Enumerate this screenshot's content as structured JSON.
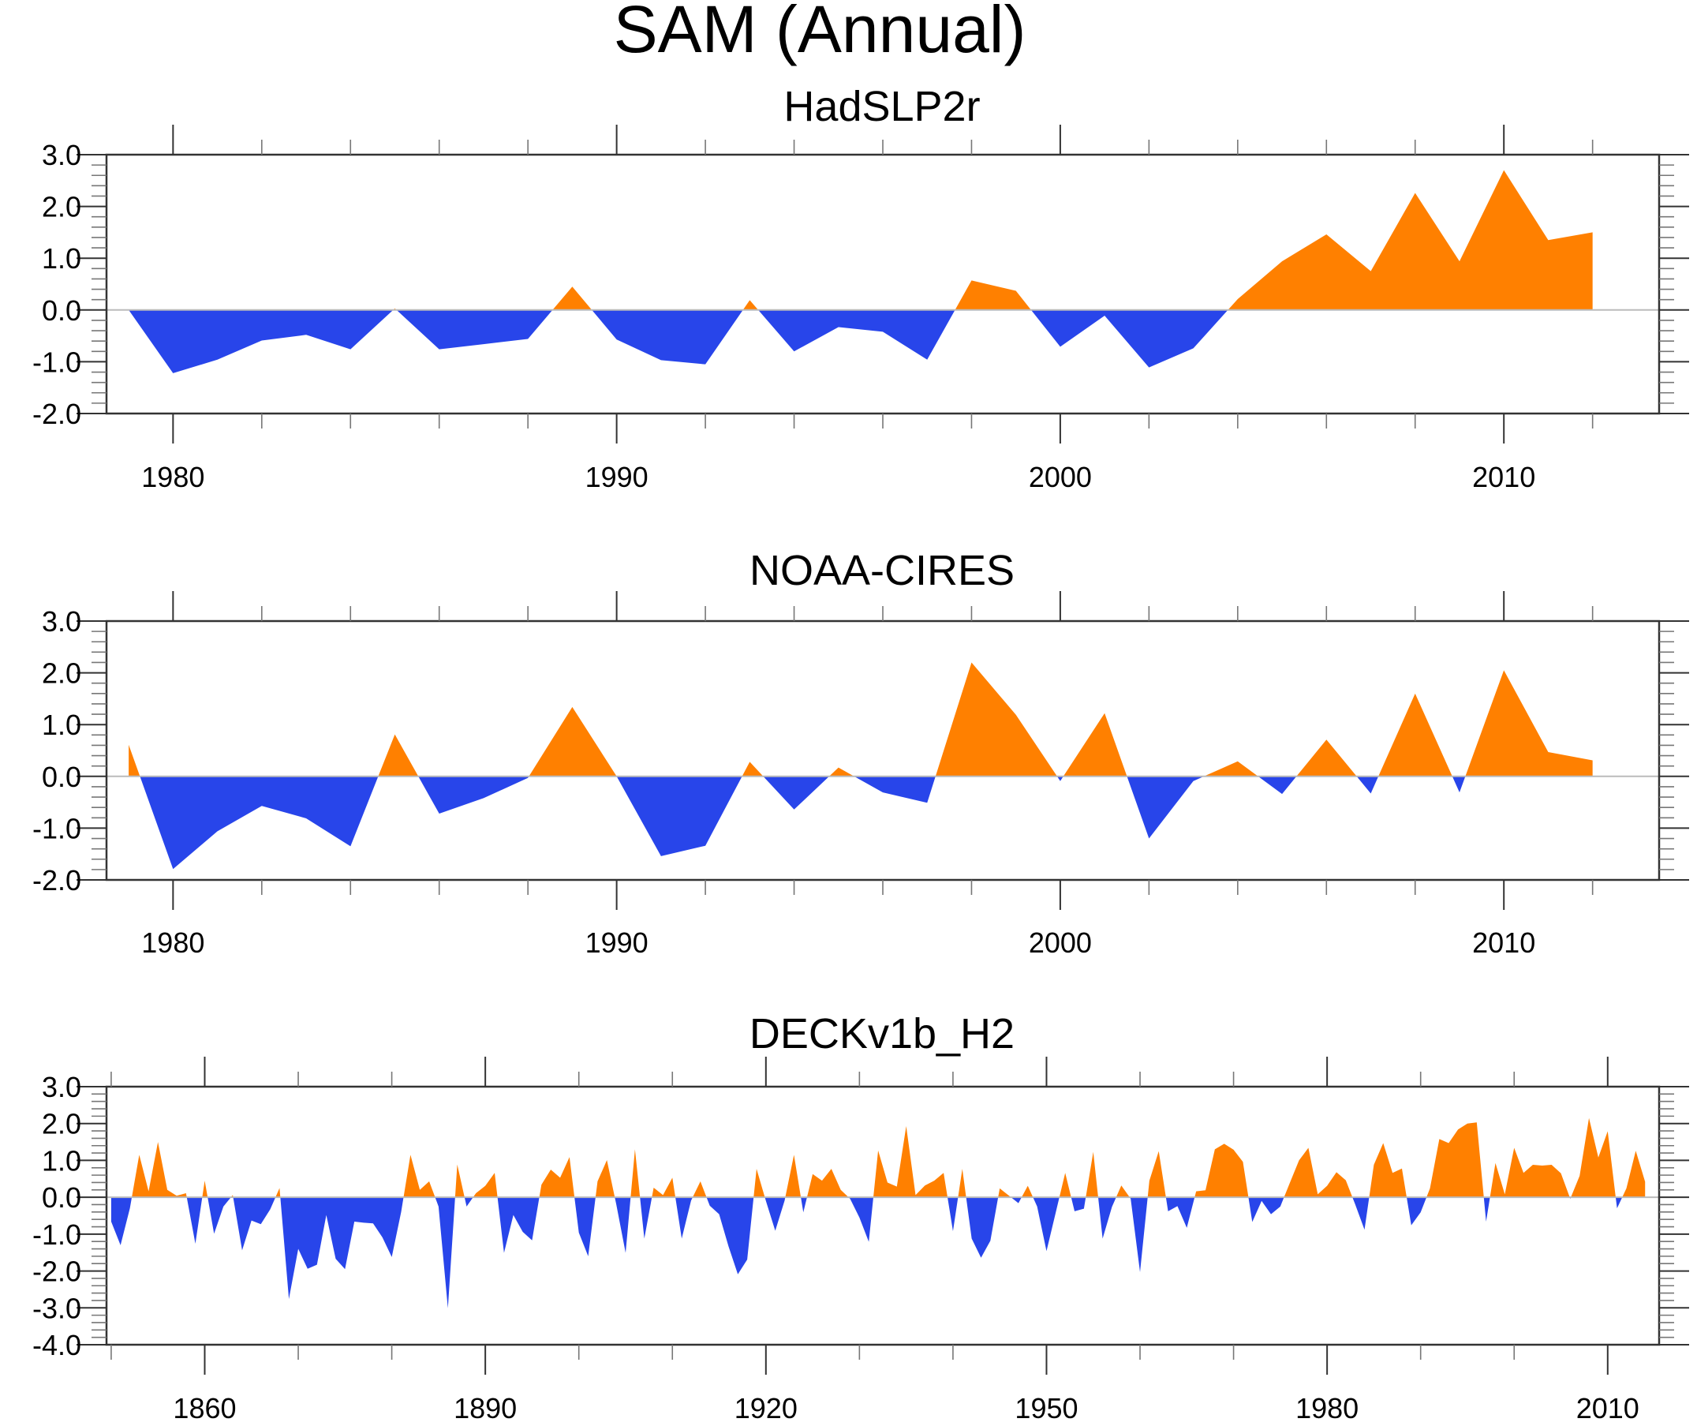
{
  "colors": {
    "positive": "#FF8000",
    "negative": "#2845EA",
    "zero_line": "#BBBBBB",
    "frame": "#333333"
  },
  "chart_data": {
    "type": "area",
    "title": "SAM (Annual)",
    "panels": [
      {
        "title": "HadSLP2r",
        "xlim": [
          1978.5,
          2013.5
        ],
        "ylim": [
          -2.0,
          3.0
        ],
        "x_major_ticks": [
          1980,
          1990,
          2000,
          2010
        ],
        "x_minor_step": 2,
        "y_ticks": [
          -2.0,
          -1.0,
          0.0,
          1.0,
          2.0,
          3.0
        ],
        "y_tick_labels": [
          "-2.0",
          "-1.0",
          "0.0",
          "1.0",
          "2.0",
          "3.0"
        ],
        "y_minor_step": 0.2,
        "x_tick_labels": [
          "1980",
          "1990",
          "2000",
          "2010"
        ],
        "grid": false,
        "fill_above_zero": "orange",
        "fill_below_zero": "blue",
        "start_year": 1979,
        "values": [
          0.0,
          -1.22,
          -0.96,
          -0.59,
          -0.48,
          -0.76,
          0.03,
          -0.76,
          -0.66,
          -0.56,
          0.45,
          -0.57,
          -0.97,
          -1.05,
          0.19,
          -0.8,
          -0.33,
          -0.42,
          -0.96,
          0.57,
          0.37,
          -0.71,
          -0.11,
          -1.11,
          -0.74,
          0.21,
          0.94,
          1.46,
          0.75,
          2.26,
          0.94,
          2.7,
          1.35,
          1.5
        ]
      },
      {
        "title": "NOAA-CIRES",
        "xlim": [
          1978.5,
          2013.5
        ],
        "ylim": [
          -2.0,
          3.0
        ],
        "x_major_ticks": [
          1980,
          1990,
          2000,
          2010
        ],
        "x_minor_step": 2,
        "y_ticks": [
          -2.0,
          -1.0,
          0.0,
          1.0,
          2.0,
          3.0
        ],
        "y_tick_labels": [
          "-2.0",
          "-1.0",
          "0.0",
          "1.0",
          "2.0",
          "3.0"
        ],
        "y_minor_step": 0.2,
        "x_tick_labels": [
          "1980",
          "1990",
          "2000",
          "2010"
        ],
        "grid": false,
        "fill_above_zero": "orange",
        "fill_below_zero": "blue",
        "start_year": 1979,
        "values": [
          0.61,
          -1.79,
          -1.06,
          -0.57,
          -0.81,
          -1.35,
          0.81,
          -0.72,
          -0.42,
          -0.03,
          1.34,
          0.0,
          -1.54,
          -1.34,
          0.28,
          -0.64,
          0.17,
          -0.31,
          -0.51,
          2.2,
          1.19,
          -0.09,
          1.22,
          -1.2,
          -0.09,
          0.29,
          -0.34,
          0.71,
          -0.33,
          1.6,
          -0.31,
          2.05,
          0.47,
          0.31
        ]
      },
      {
        "title": "DECKv1b_H2",
        "xlim": [
          1849.5,
          2015.5
        ],
        "ylim": [
          -4.0,
          3.0
        ],
        "x_major_ticks": [
          1860,
          1890,
          1920,
          1950,
          1980,
          2010
        ],
        "x_minor_step": 10,
        "y_ticks": [
          -4.0,
          -3.0,
          -2.0,
          -1.0,
          0.0,
          1.0,
          2.0,
          3.0
        ],
        "y_tick_labels": [
          "-4.0",
          "-3.0",
          "-2.0",
          "-1.0",
          "0.0",
          "1.0",
          "2.0",
          "3.0"
        ],
        "y_minor_step": 0.2,
        "x_tick_labels": [
          "1860",
          "1890",
          "1920",
          "1950",
          "1980",
          "2010"
        ],
        "grid": false,
        "fill_above_zero": "orange",
        "fill_below_zero": "blue",
        "start_year": 1850,
        "values": [
          -0.66,
          -1.3,
          -0.3,
          1.15,
          0.16,
          1.5,
          0.2,
          0.04,
          0.11,
          -1.26,
          0.45,
          -0.99,
          -0.25,
          0.06,
          -1.44,
          -0.63,
          -0.73,
          -0.33,
          0.25,
          -2.76,
          -1.4,
          -1.94,
          -1.83,
          -0.48,
          -1.67,
          -1.95,
          -0.66,
          -0.69,
          -0.71,
          -1.09,
          -1.62,
          -0.4,
          1.15,
          0.2,
          0.43,
          -0.25,
          -3.01,
          0.89,
          -0.25,
          0.11,
          0.31,
          0.66,
          -1.51,
          -0.48,
          -0.94,
          -1.17,
          0.34,
          0.75,
          0.53,
          1.09,
          -0.96,
          -1.6,
          0.43,
          1.01,
          -0.19,
          -1.51,
          1.3,
          -1.12,
          0.26,
          0.06,
          0.53,
          -1.12,
          -0.09,
          0.43,
          -0.23,
          -0.46,
          -1.33,
          -2.09,
          -1.69,
          0.77,
          -0.1,
          -0.91,
          -0.09,
          1.15,
          -0.41,
          0.63,
          0.45,
          0.77,
          0.2,
          -0.04,
          -0.55,
          -1.21,
          1.27,
          0.4,
          0.29,
          1.93,
          0.06,
          0.32,
          0.45,
          0.66,
          -0.92,
          0.77,
          -1.12,
          -1.64,
          -1.18,
          0.24,
          0.04,
          -0.16,
          0.31,
          -0.25,
          -1.46,
          -0.4,
          0.66,
          -0.38,
          -0.31,
          1.23,
          -1.12,
          -0.26,
          0.32,
          -0.04,
          -2.03,
          0.45,
          1.25,
          -0.38,
          -0.24,
          -0.83,
          0.16,
          0.19,
          1.3,
          1.45,
          1.29,
          0.96,
          -0.67,
          -0.1,
          -0.46,
          -0.25,
          0.38,
          1.0,
          1.34,
          0.08,
          0.31,
          0.68,
          0.46,
          -0.19,
          -0.88,
          0.88,
          1.47,
          0.66,
          0.78,
          -0.76,
          -0.41,
          0.24,
          1.58,
          1.47,
          1.84,
          2.0,
          2.03,
          -0.66,
          0.93,
          0.08,
          1.34,
          0.66,
          0.88,
          0.86,
          0.88,
          0.65,
          -0.04,
          0.58,
          2.15,
          1.08,
          1.79,
          -0.3,
          0.24,
          1.26,
          0.42
        ]
      }
    ]
  }
}
